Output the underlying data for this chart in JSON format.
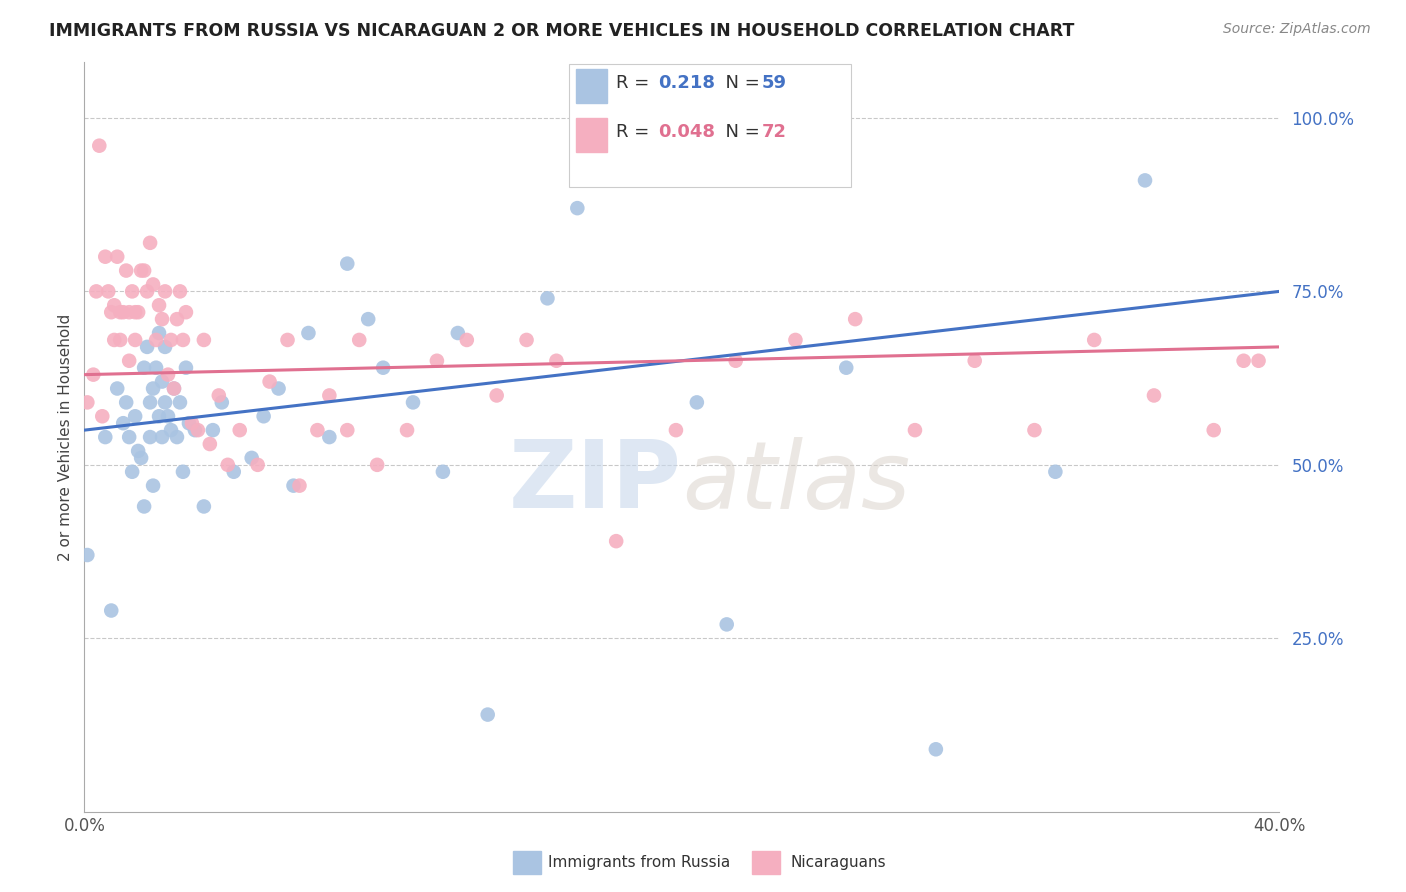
{
  "title": "IMMIGRANTS FROM RUSSIA VS NICARAGUAN 2 OR MORE VEHICLES IN HOUSEHOLD CORRELATION CHART",
  "source": "Source: ZipAtlas.com",
  "ylabel": "2 or more Vehicles in Household",
  "xlim": [
    0.0,
    0.4
  ],
  "ylim": [
    0.0,
    1.08
  ],
  "blue_R": 0.218,
  "blue_N": 59,
  "pink_R": 0.048,
  "pink_N": 72,
  "blue_color": "#aac4e2",
  "pink_color": "#f5afc0",
  "blue_line_color": "#4472c4",
  "pink_line_color": "#e07090",
  "legend_blue_label": "Immigrants from Russia",
  "legend_pink_label": "Nicaraguans",
  "watermark_zip": "ZIP",
  "watermark_atlas": "atlas",
  "xtick_positions": [
    0.0,
    0.4
  ],
  "xtick_labels": [
    "0.0%",
    "40.0%"
  ],
  "ytick_positions": [
    0.25,
    0.5,
    0.75,
    1.0
  ],
  "ytick_labels": [
    "25.0%",
    "50.0%",
    "75.0%",
    "100.0%"
  ],
  "blue_scatter_x": [
    0.001,
    0.007,
    0.009,
    0.011,
    0.013,
    0.014,
    0.015,
    0.016,
    0.017,
    0.018,
    0.019,
    0.02,
    0.02,
    0.021,
    0.022,
    0.022,
    0.023,
    0.023,
    0.024,
    0.025,
    0.025,
    0.026,
    0.026,
    0.027,
    0.027,
    0.028,
    0.029,
    0.03,
    0.031,
    0.032,
    0.033,
    0.034,
    0.035,
    0.037,
    0.04,
    0.043,
    0.046,
    0.05,
    0.056,
    0.06,
    0.065,
    0.07,
    0.075,
    0.082,
    0.088,
    0.095,
    0.1,
    0.11,
    0.12,
    0.125,
    0.135,
    0.155,
    0.165,
    0.205,
    0.215,
    0.255,
    0.285,
    0.325,
    0.355
  ],
  "blue_scatter_y": [
    0.37,
    0.54,
    0.29,
    0.61,
    0.56,
    0.59,
    0.54,
    0.49,
    0.57,
    0.52,
    0.51,
    0.44,
    0.64,
    0.67,
    0.59,
    0.54,
    0.61,
    0.47,
    0.64,
    0.69,
    0.57,
    0.62,
    0.54,
    0.59,
    0.67,
    0.57,
    0.55,
    0.61,
    0.54,
    0.59,
    0.49,
    0.64,
    0.56,
    0.55,
    0.44,
    0.55,
    0.59,
    0.49,
    0.51,
    0.57,
    0.61,
    0.47,
    0.69,
    0.54,
    0.79,
    0.71,
    0.64,
    0.59,
    0.49,
    0.69,
    0.14,
    0.74,
    0.87,
    0.59,
    0.27,
    0.64,
    0.09,
    0.49,
    0.91
  ],
  "pink_scatter_x": [
    0.001,
    0.003,
    0.004,
    0.005,
    0.006,
    0.007,
    0.008,
    0.009,
    0.01,
    0.01,
    0.011,
    0.012,
    0.012,
    0.013,
    0.014,
    0.015,
    0.015,
    0.016,
    0.017,
    0.017,
    0.018,
    0.019,
    0.02,
    0.021,
    0.022,
    0.023,
    0.024,
    0.025,
    0.026,
    0.027,
    0.028,
    0.029,
    0.03,
    0.031,
    0.032,
    0.033,
    0.034,
    0.036,
    0.038,
    0.04,
    0.042,
    0.045,
    0.048,
    0.052,
    0.058,
    0.062,
    0.068,
    0.072,
    0.078,
    0.082,
    0.088,
    0.092,
    0.098,
    0.108,
    0.118,
    0.128,
    0.138,
    0.148,
    0.158,
    0.178,
    0.198,
    0.218,
    0.238,
    0.258,
    0.278,
    0.298,
    0.318,
    0.338,
    0.358,
    0.378,
    0.388,
    0.393
  ],
  "pink_scatter_y": [
    0.59,
    0.63,
    0.75,
    0.96,
    0.57,
    0.8,
    0.75,
    0.72,
    0.68,
    0.73,
    0.8,
    0.72,
    0.68,
    0.72,
    0.78,
    0.72,
    0.65,
    0.75,
    0.72,
    0.68,
    0.72,
    0.78,
    0.78,
    0.75,
    0.82,
    0.76,
    0.68,
    0.73,
    0.71,
    0.75,
    0.63,
    0.68,
    0.61,
    0.71,
    0.75,
    0.68,
    0.72,
    0.56,
    0.55,
    0.68,
    0.53,
    0.6,
    0.5,
    0.55,
    0.5,
    0.62,
    0.68,
    0.47,
    0.55,
    0.6,
    0.55,
    0.68,
    0.5,
    0.55,
    0.65,
    0.68,
    0.6,
    0.68,
    0.65,
    0.39,
    0.55,
    0.65,
    0.68,
    0.71,
    0.55,
    0.65,
    0.55,
    0.68,
    0.6,
    0.55,
    0.65,
    0.65
  ]
}
